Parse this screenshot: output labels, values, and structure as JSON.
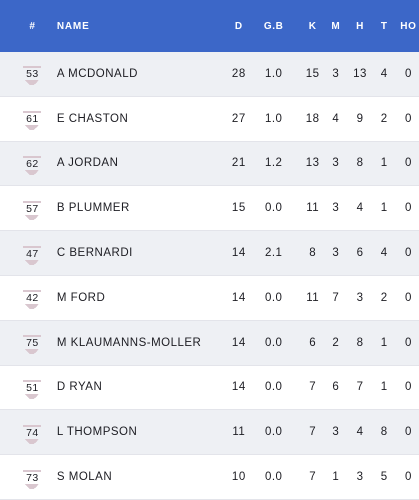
{
  "header": {
    "num": "#",
    "name": "NAME",
    "d": "D",
    "gb": "G.B",
    "k": "K",
    "m": "M",
    "h": "H",
    "t": "T",
    "ho": "HO"
  },
  "colors": {
    "header_bg": "#3c67c8",
    "row_alt_bg": "#eef0f4",
    "plate_color": "#d9c7cf"
  },
  "rows": [
    {
      "num": "53",
      "name": "A MCDONALD",
      "d": "28",
      "gb": "1.0",
      "k": "15",
      "m": "3",
      "h": "13",
      "t": "4",
      "ho": "0"
    },
    {
      "num": "61",
      "name": "E CHASTON",
      "d": "27",
      "gb": "1.0",
      "k": "18",
      "m": "4",
      "h": "9",
      "t": "2",
      "ho": "0"
    },
    {
      "num": "62",
      "name": "A JORDAN",
      "d": "21",
      "gb": "1.2",
      "k": "13",
      "m": "3",
      "h": "8",
      "t": "1",
      "ho": "0"
    },
    {
      "num": "57",
      "name": "B PLUMMER",
      "d": "15",
      "gb": "0.0",
      "k": "11",
      "m": "3",
      "h": "4",
      "t": "1",
      "ho": "0"
    },
    {
      "num": "47",
      "name": "C BERNARDI",
      "d": "14",
      "gb": "2.1",
      "k": "8",
      "m": "3",
      "h": "6",
      "t": "4",
      "ho": "0"
    },
    {
      "num": "42",
      "name": "M FORD",
      "d": "14",
      "gb": "0.0",
      "k": "11",
      "m": "7",
      "h": "3",
      "t": "2",
      "ho": "0"
    },
    {
      "num": "75",
      "name": "M KLAUMANNS-MOLLER",
      "d": "14",
      "gb": "0.0",
      "k": "6",
      "m": "2",
      "h": "8",
      "t": "1",
      "ho": "0"
    },
    {
      "num": "51",
      "name": "D RYAN",
      "d": "14",
      "gb": "0.0",
      "k": "7",
      "m": "6",
      "h": "7",
      "t": "1",
      "ho": "0"
    },
    {
      "num": "74",
      "name": "L THOMPSON",
      "d": "11",
      "gb": "0.0",
      "k": "7",
      "m": "3",
      "h": "4",
      "t": "8",
      "ho": "0"
    },
    {
      "num": "73",
      "name": "S MOLAN",
      "d": "10",
      "gb": "0.0",
      "k": "7",
      "m": "1",
      "h": "3",
      "t": "5",
      "ho": "0"
    }
  ]
}
